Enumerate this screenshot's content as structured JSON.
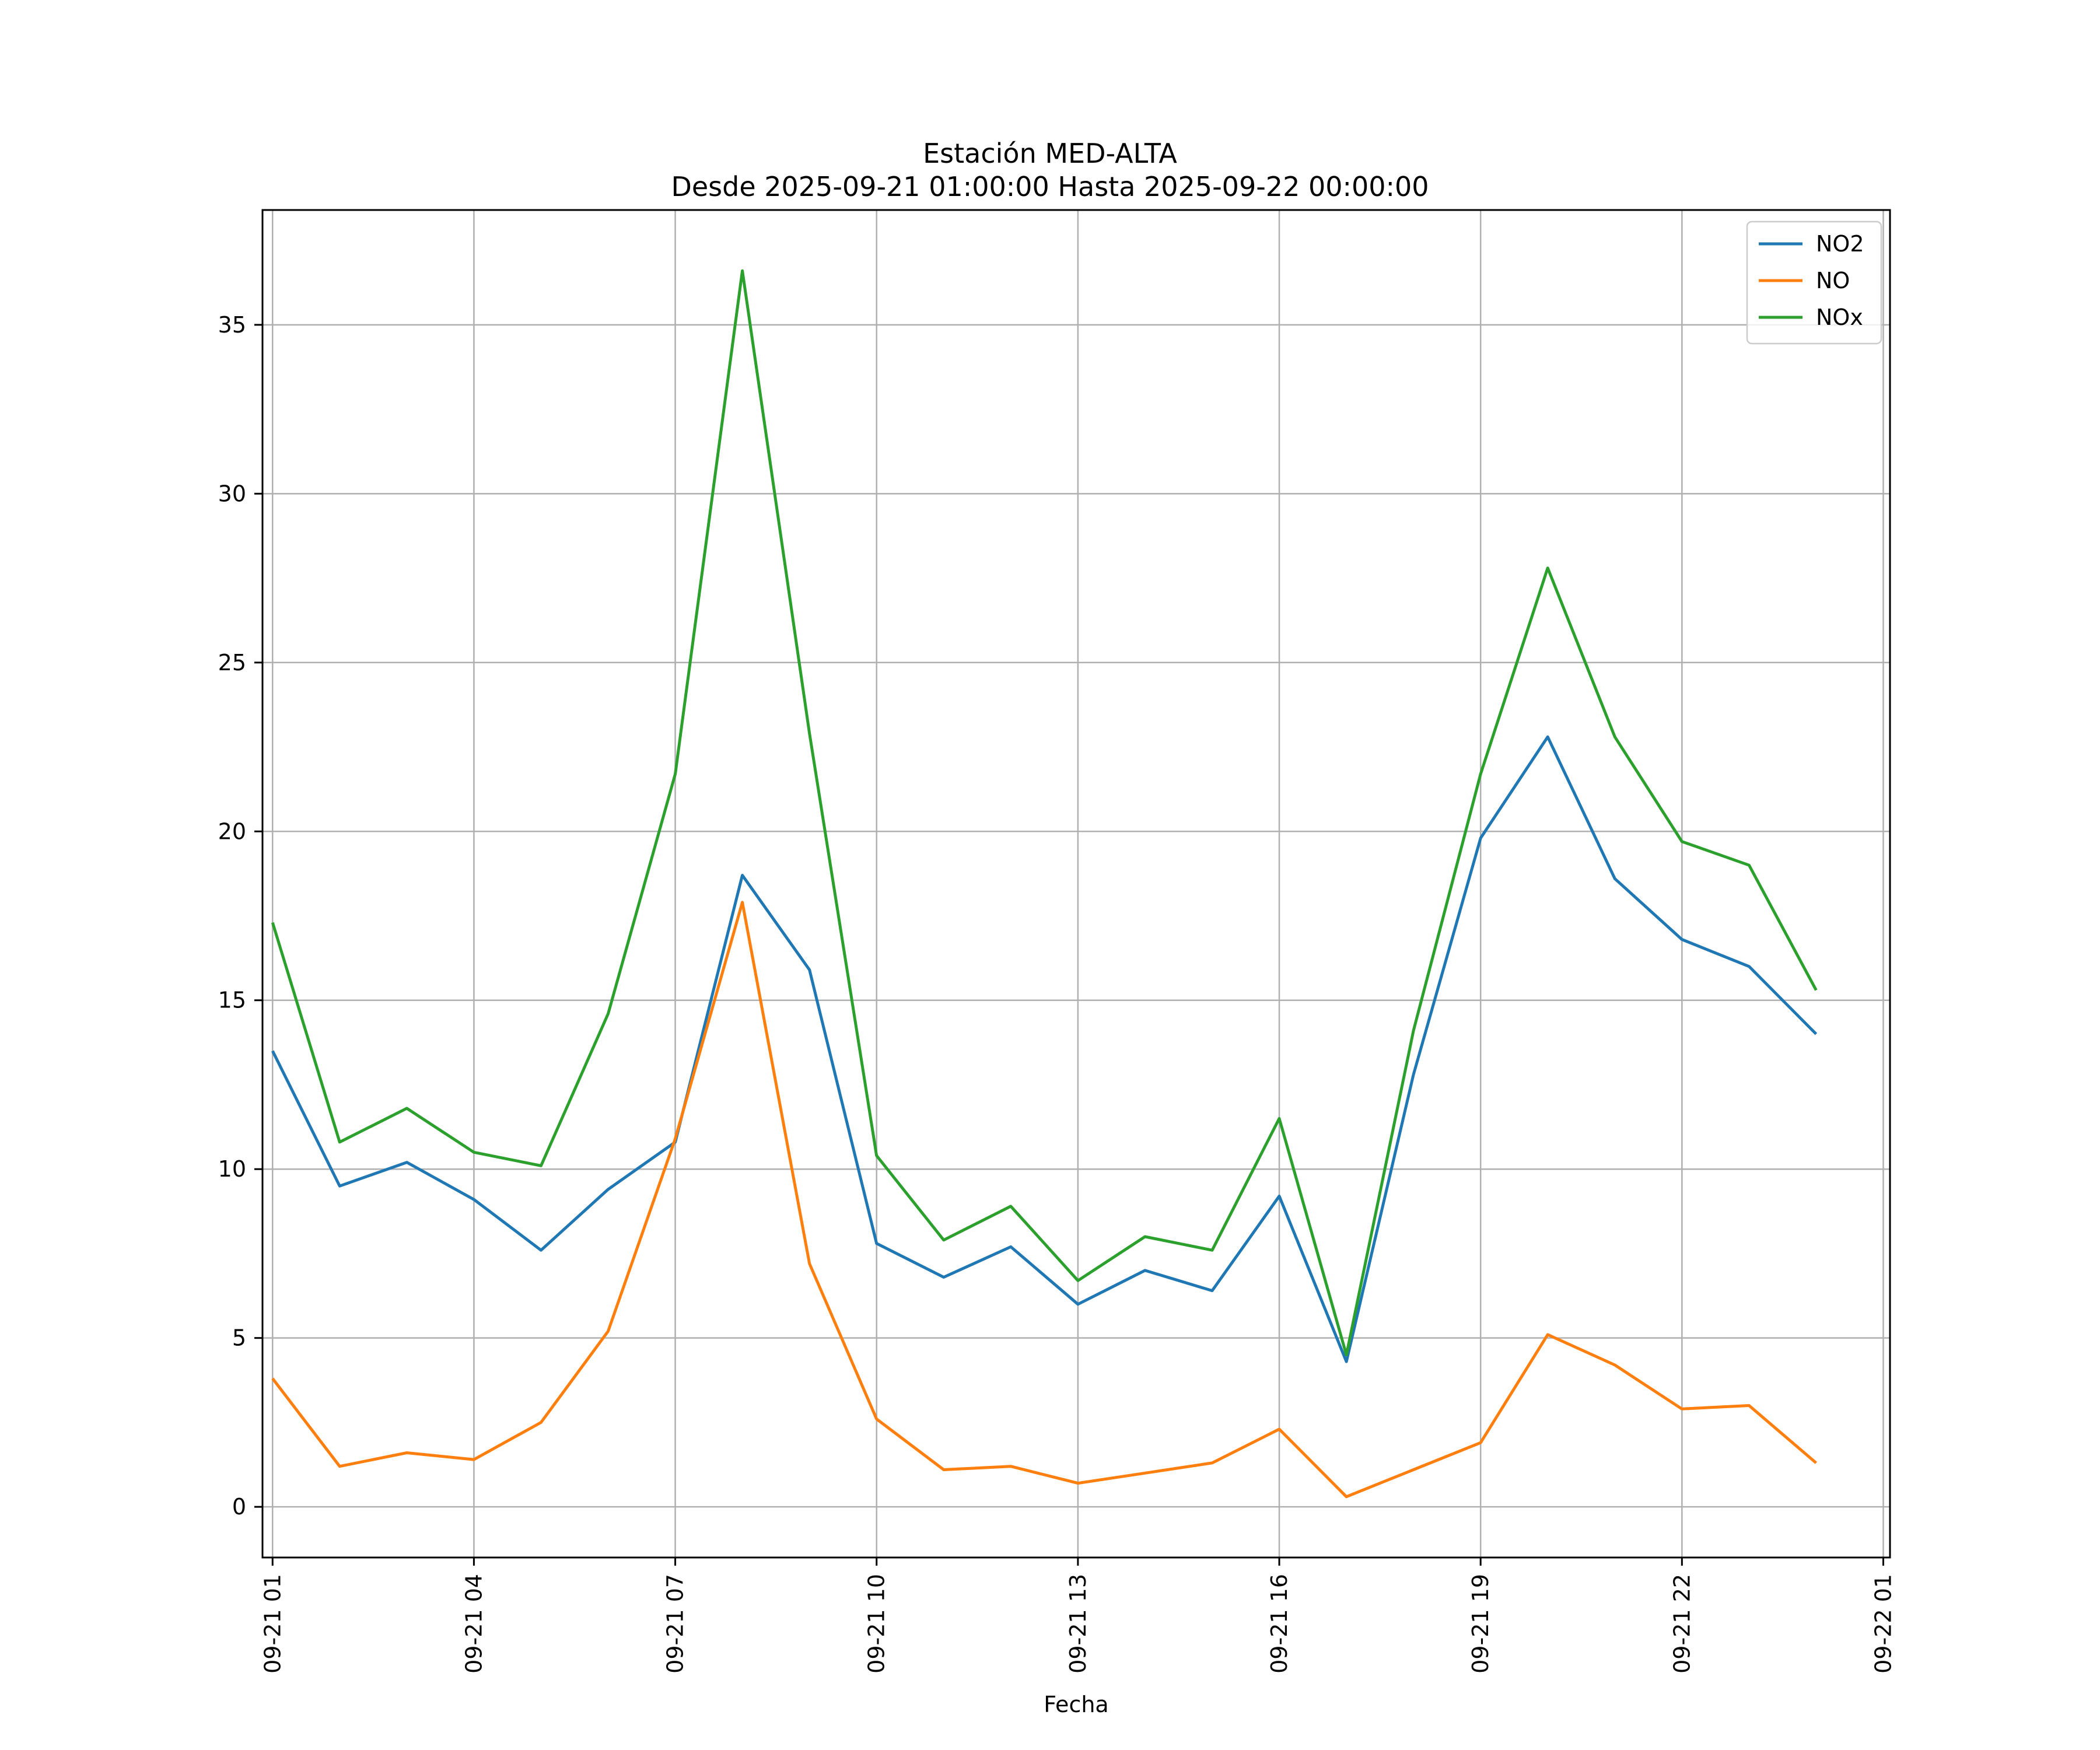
{
  "chart_data": {
    "type": "line",
    "title": "Estación MED-ALTA",
    "subtitle": "Desde 2025-09-21 01:00:00 Hasta 2025-09-22 00:00:00",
    "xlabel": "Fecha",
    "ylabel": "",
    "ylim": [
      -1.5,
      38.4
    ],
    "xlim": [
      -0.15,
      24.1
    ],
    "grid": true,
    "legend": "top-right",
    "x": [
      0,
      1,
      2,
      3,
      4,
      5,
      6,
      7,
      8,
      9,
      10,
      11,
      12,
      13,
      14,
      15,
      16,
      17,
      18,
      19,
      20,
      21,
      22,
      23
    ],
    "x_tick_positions": [
      0,
      3,
      6,
      9,
      12,
      15,
      18,
      21,
      24
    ],
    "x_tick_labels": [
      "09-21 01",
      "09-21 04",
      "09-21 07",
      "09-21 10",
      "09-21 13",
      "09-21 16",
      "09-21 19",
      "09-21 22",
      "09-22 01"
    ],
    "y_ticks": [
      0,
      5,
      10,
      15,
      20,
      25,
      30,
      35
    ],
    "y_tick_labels": [
      "0",
      "5",
      "10",
      "15",
      "20",
      "25",
      "30",
      "35"
    ],
    "series": [
      {
        "name": "NO2",
        "color": "#1f77b4",
        "values": [
          13.5,
          9.5,
          10.2,
          9.1,
          7.6,
          9.4,
          10.8,
          18.7,
          15.9,
          7.8,
          6.8,
          7.7,
          6.0,
          7.0,
          6.4,
          9.2,
          4.3,
          12.8,
          19.8,
          22.8,
          18.6,
          16.8,
          16.0,
          14.0
        ]
      },
      {
        "name": "NO",
        "color": "#ff7f0e",
        "values": [
          3.8,
          1.2,
          1.6,
          1.4,
          2.5,
          5.2,
          10.9,
          17.9,
          7.2,
          2.6,
          1.1,
          1.2,
          0.7,
          1.0,
          1.3,
          2.3,
          0.3,
          1.1,
          1.9,
          5.1,
          4.2,
          2.9,
          3.0,
          1.3
        ]
      },
      {
        "name": "NOx",
        "color": "#2ca02c",
        "values": [
          17.3,
          10.8,
          11.8,
          10.5,
          10.1,
          14.6,
          21.7,
          36.6,
          22.9,
          10.4,
          7.9,
          8.9,
          6.7,
          8.0,
          7.6,
          11.5,
          4.5,
          14.1,
          21.7,
          27.8,
          22.8,
          19.7,
          19.0,
          15.3
        ]
      }
    ]
  }
}
